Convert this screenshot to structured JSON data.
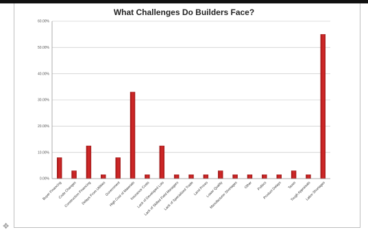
{
  "chart_data": {
    "type": "bar",
    "title": "What Challenges Do Builders Face?",
    "xlabel": "",
    "ylabel": "",
    "ylim": [
      0,
      60
    ],
    "y_ticks": [
      "0.00%",
      "10.00%",
      "20.00%",
      "30.00%",
      "40.00%",
      "50.00%",
      "60.00%"
    ],
    "grid": true,
    "legend": "none",
    "bar_color": "#d42a2a",
    "categories": [
      "Buyer Financing",
      "Code Changes",
      "Construction Financing",
      "Delays From Utilities",
      "Government",
      "High Cost of Materials",
      "Insurance Costs",
      "Lack of Developed Lots",
      "Lack of Skilled Field Managers",
      "Lack of Specialized Trade",
      "Land Prices",
      "Lower Quality",
      "Manufacturer Shortages",
      "Other",
      "Politics",
      "Product Delays",
      "Taxes",
      "Tough Appraisals",
      "Labor Shortages"
    ],
    "values": [
      8,
      3,
      12.5,
      1.5,
      8,
      33,
      1.5,
      12.5,
      1.5,
      1.5,
      1.5,
      3,
      1.5,
      1.5,
      1.5,
      1.5,
      3,
      1.5,
      55
    ]
  },
  "icons": {
    "corner": "move-handle-icon"
  }
}
